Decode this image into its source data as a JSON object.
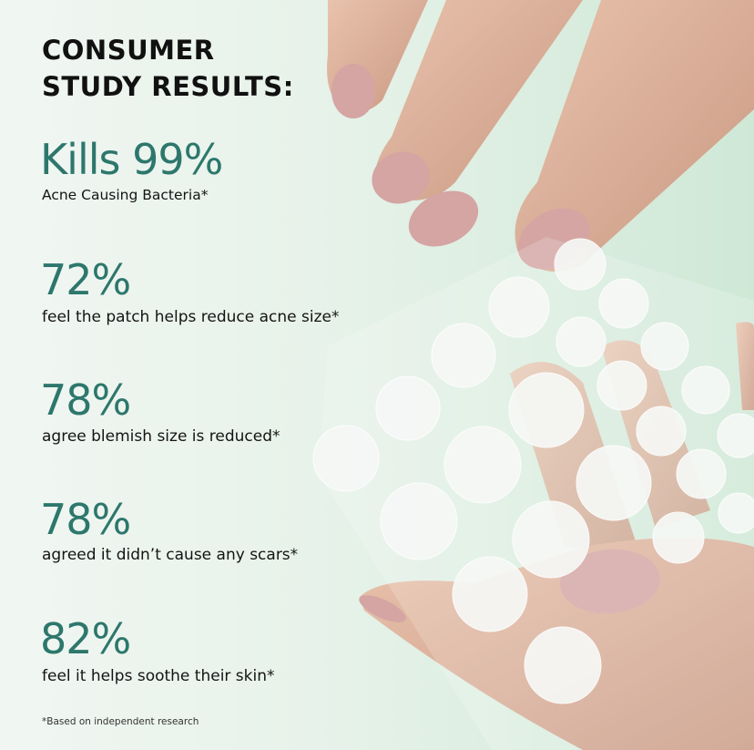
{
  "title": {
    "line1": "CONSUMER",
    "line2": "STUDY RESULTS:"
  },
  "stats": [
    {
      "value": "Kills 99%",
      "caption": "Acne Causing Bacteria*"
    },
    {
      "value": "72%",
      "caption": "feel the patch helps reduce acne size*"
    },
    {
      "value": "78%",
      "caption": "agree blemish size is reduced*"
    },
    {
      "value": "78%",
      "caption": "agreed it didn’t cause any scars*"
    },
    {
      "value": "82%",
      "caption": "feel it helps soothe their skin*"
    }
  ],
  "footnote": "*Based on independent research",
  "colors": {
    "accent": "#2d776c",
    "text": "#111111",
    "nail": "#d4a5a3",
    "skin": "#e2b8a0"
  }
}
